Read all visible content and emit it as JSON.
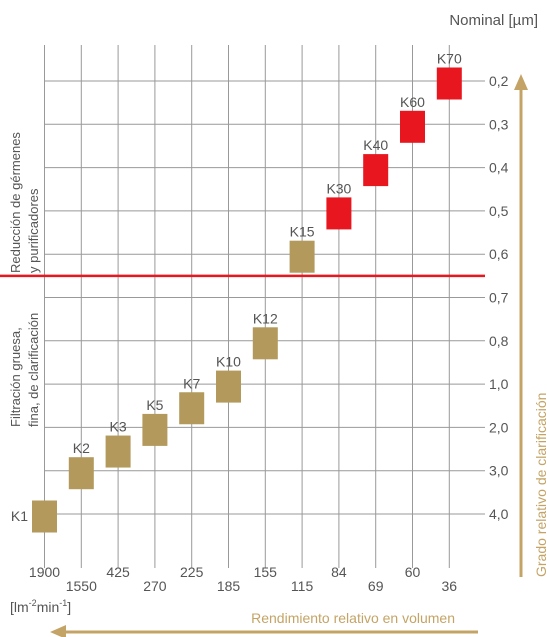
{
  "chart_data": {
    "type": "scatter",
    "title": "",
    "unit_label": "Nominal [µm]",
    "right_axis_label": "Grado relativo de clarificación",
    "bottom_axis_label": "Rendimiento relativo en volumen",
    "bottom_unit_base": "[lm",
    "bottom_unit_sup1": "-2",
    "bottom_unit_mid": "min",
    "bottom_unit_sup2": "-1",
    "bottom_unit_end": "]",
    "region_labels": {
      "upper_line1": "Reducción de gérmenes",
      "upper_line2": "y purificadores",
      "lower_line1": "Filtración gruesa,",
      "lower_line2": "fina, de clarificación"
    },
    "x_tick_labels": [
      "1900",
      "1550",
      "425",
      "270",
      "225",
      "185",
      "155",
      "115",
      "84",
      "69",
      "60",
      "36"
    ],
    "y_tick_labels": [
      "0,2",
      "0,3",
      "0,4",
      "0,5",
      "0,6",
      "0,7",
      "0,8",
      "1,0",
      "2,0",
      "3,0",
      "4,0"
    ],
    "series": [
      {
        "color": "#b39a5c",
        "points": [
          {
            "label": "K1",
            "x": "1900",
            "y": "4,0"
          },
          {
            "label": "K2",
            "x": "1550",
            "y": "3,0"
          },
          {
            "label": "K3",
            "x": "425",
            "y": "2,5"
          },
          {
            "label": "K5",
            "x": "270",
            "y": "2,0"
          },
          {
            "label": "K7",
            "x": "225",
            "y": "1,5"
          },
          {
            "label": "K10",
            "x": "185",
            "y": "1,0"
          },
          {
            "label": "K12",
            "x": "155",
            "y": "0,8"
          },
          {
            "label": "K15",
            "x": "115",
            "y": "0,6"
          }
        ]
      },
      {
        "color": "#e8161f",
        "points": [
          {
            "label": "K30",
            "x": "84",
            "y": "0,5"
          },
          {
            "label": "K40",
            "x": "69",
            "y": "0,4"
          },
          {
            "label": "K60",
            "x": "60",
            "y": "0,3"
          },
          {
            "label": "K70",
            "x": "36",
            "y": "0,2"
          }
        ]
      }
    ],
    "separator": {
      "between": [
        "0,6",
        "0,7"
      ],
      "color": "#e8161f"
    },
    "colors": {
      "accent": "#c4a466",
      "grid": "#999999",
      "text": "#555555"
    },
    "grid": true
  }
}
